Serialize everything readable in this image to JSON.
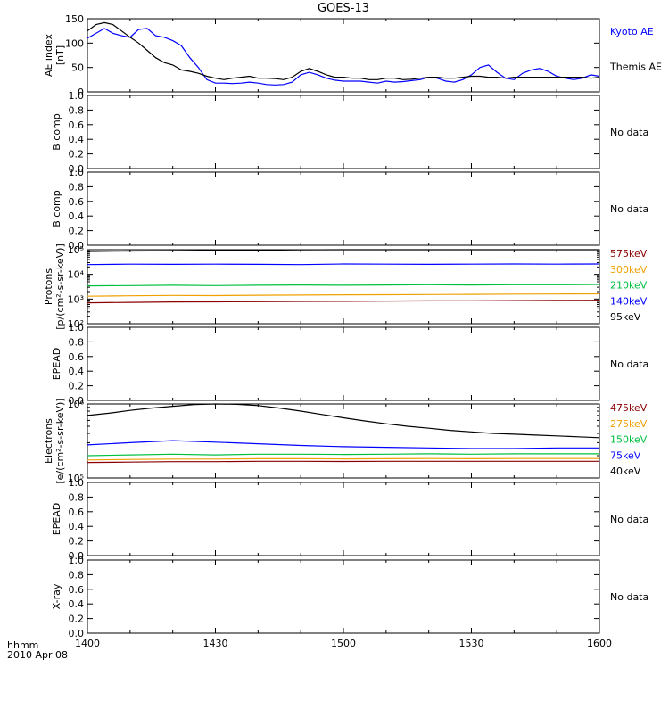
{
  "title": "GOES-13",
  "footer": {
    "time_label": "hhmm",
    "date_label": "2010 Apr 08"
  },
  "colors": {
    "axis": "#000000",
    "kyoto": "#0000ff",
    "black": "#000000",
    "dark_red": "#8b0000",
    "orange": "#f0a000",
    "green": "#00c040",
    "blue": "#0000ff"
  },
  "chart_data": [
    {
      "id": "ae",
      "type": "line",
      "ylabel": [
        "AE index",
        "[nT]"
      ],
      "xlim": [
        0,
        120
      ],
      "ylim": [
        0,
        150
      ],
      "ytick_values": [
        0,
        50,
        100,
        150
      ],
      "ytick_labels": [
        "0",
        "50",
        "100",
        "150"
      ],
      "legend": [
        {
          "name": "Kyoto AE",
          "color": "#0000ff"
        },
        {
          "name": "Themis AE",
          "color": "#000000"
        }
      ],
      "series": [
        {
          "name": "Kyoto AE",
          "color": "#0000ff",
          "x": [
            0,
            2,
            4,
            6,
            8,
            10,
            12,
            14,
            16,
            18,
            20,
            22,
            24,
            26,
            28,
            30,
            32,
            34,
            36,
            38,
            40,
            42,
            44,
            46,
            48,
            50,
            52,
            54,
            56,
            58,
            60,
            62,
            64,
            66,
            68,
            70,
            72,
            74,
            76,
            78,
            80,
            82,
            84,
            86,
            88,
            90,
            92,
            94,
            96,
            98,
            100,
            102,
            104,
            106,
            108,
            110,
            112,
            114,
            116,
            118,
            120
          ],
          "y": [
            110,
            120,
            130,
            120,
            115,
            112,
            128,
            130,
            115,
            112,
            105,
            95,
            70,
            50,
            25,
            18,
            18,
            17,
            18,
            20,
            18,
            15,
            14,
            15,
            20,
            35,
            40,
            35,
            28,
            24,
            22,
            22,
            22,
            20,
            18,
            22,
            20,
            21,
            23,
            25,
            30,
            28,
            22,
            20,
            25,
            35,
            50,
            55,
            40,
            28,
            25,
            38,
            45,
            48,
            42,
            32,
            28,
            25,
            28,
            35,
            32
          ]
        },
        {
          "name": "Themis AE",
          "color": "#000000",
          "x": [
            0,
            2,
            4,
            6,
            8,
            10,
            12,
            14,
            16,
            18,
            20,
            22,
            24,
            26,
            28,
            30,
            32,
            34,
            36,
            38,
            40,
            42,
            44,
            46,
            48,
            50,
            52,
            54,
            56,
            58,
            60,
            62,
            64,
            66,
            68,
            70,
            72,
            74,
            76,
            78,
            80,
            82,
            84,
            86,
            88,
            90,
            92,
            94,
            96,
            98,
            100,
            102,
            104,
            106,
            108,
            110,
            112,
            114,
            116,
            118,
            120
          ],
          "y": [
            125,
            138,
            142,
            138,
            125,
            112,
            100,
            85,
            70,
            60,
            55,
            45,
            42,
            38,
            32,
            28,
            25,
            28,
            30,
            32,
            28,
            28,
            27,
            25,
            30,
            42,
            48,
            42,
            35,
            30,
            30,
            28,
            28,
            25,
            25,
            28,
            28,
            25,
            26,
            28,
            30,
            30,
            28,
            28,
            30,
            32,
            32,
            30,
            30,
            28,
            30,
            30,
            30,
            30,
            30,
            30,
            30,
            30,
            30,
            28,
            30
          ]
        }
      ]
    },
    {
      "id": "bcomp1",
      "type": "line",
      "ylabel": [
        "B comp"
      ],
      "xlim": [
        0,
        120
      ],
      "ylim": [
        0,
        1
      ],
      "ytick_values": [
        0,
        0.2,
        0.4,
        0.6,
        0.8,
        1.0
      ],
      "ytick_labels": [
        "0.0",
        "0.2",
        "0.4",
        "0.6",
        "0.8",
        "1.0"
      ],
      "note": "No data",
      "series": []
    },
    {
      "id": "bcomp2",
      "type": "line",
      "ylabel": [
        "B comp"
      ],
      "xlim": [
        0,
        120
      ],
      "ylim": [
        0,
        1
      ],
      "ytick_values": [
        0,
        0.2,
        0.4,
        0.6,
        0.8,
        1.0
      ],
      "ytick_labels": [
        "0.0",
        "0.2",
        "0.4",
        "0.6",
        "0.8",
        "1.0"
      ],
      "note": "No data",
      "series": []
    },
    {
      "id": "protons",
      "type": "line",
      "log": true,
      "ylabel": [
        "Protons",
        "[p/(cm²-s-sr-keV)]"
      ],
      "xlim": [
        0,
        120
      ],
      "ylim": [
        100,
        100000
      ],
      "ytick_values": [
        100,
        1000,
        10000,
        100000
      ],
      "ytick_labels": [
        "10²",
        "10³",
        "10⁴",
        "10⁵"
      ],
      "legend": [
        {
          "name": "575keV",
          "color": "#8b0000"
        },
        {
          "name": "300keV",
          "color": "#f0a000"
        },
        {
          "name": "210keV",
          "color": "#00c040"
        },
        {
          "name": "140keV",
          "color": "#0000ff"
        },
        {
          "name": "95keV",
          "color": "#000000"
        }
      ],
      "series": [
        {
          "name": "95keV",
          "color": "#000000",
          "x": [
            0,
            10,
            20,
            30,
            40,
            50,
            60,
            70,
            80,
            90,
            100,
            110,
            120
          ],
          "y": [
            85000,
            88000,
            90000,
            92000,
            95000,
            98000,
            100000,
            100000,
            100000,
            100000,
            100000,
            100000,
            100000
          ]
        },
        {
          "name": "140keV",
          "color": "#0000ff",
          "x": [
            0,
            10,
            20,
            30,
            40,
            50,
            60,
            70,
            80,
            90,
            100,
            110,
            120
          ],
          "y": [
            25000,
            26000,
            25500,
            26000,
            25500,
            25000,
            26500,
            26000,
            25500,
            26000,
            26500,
            26000,
            26500
          ]
        },
        {
          "name": "210keV",
          "color": "#00c040",
          "x": [
            0,
            10,
            20,
            30,
            40,
            50,
            60,
            70,
            80,
            90,
            100,
            110,
            120
          ],
          "y": [
            3400,
            3500,
            3600,
            3500,
            3600,
            3700,
            3600,
            3700,
            3800,
            3700,
            3800,
            3800,
            3900
          ]
        },
        {
          "name": "300keV",
          "color": "#f0a000",
          "x": [
            0,
            10,
            20,
            30,
            40,
            50,
            60,
            70,
            80,
            90,
            100,
            110,
            120
          ],
          "y": [
            1300,
            1350,
            1400,
            1380,
            1420,
            1450,
            1480,
            1500,
            1520,
            1550,
            1580,
            1600,
            1620
          ]
        },
        {
          "name": "575keV",
          "color": "#8b0000",
          "x": [
            0,
            10,
            20,
            30,
            40,
            50,
            60,
            70,
            80,
            90,
            100,
            110,
            120
          ],
          "y": [
            700,
            730,
            760,
            770,
            780,
            800,
            810,
            830,
            840,
            850,
            860,
            880,
            890
          ]
        }
      ]
    },
    {
      "id": "epead1",
      "type": "line",
      "ylabel": [
        "EPEAD"
      ],
      "xlim": [
        0,
        120
      ],
      "ylim": [
        0,
        1
      ],
      "ytick_values": [
        0,
        0.2,
        0.4,
        0.6,
        0.8,
        1.0
      ],
      "ytick_labels": [
        "0.0",
        "0.2",
        "0.4",
        "0.6",
        "0.8",
        "1.0"
      ],
      "note": "No data",
      "series": []
    },
    {
      "id": "electrons",
      "type": "line",
      "log": true,
      "ylabel": [
        "Electrons",
        "[e/(cm²-s-sr-keV)]"
      ],
      "xlim": [
        0,
        120
      ],
      "ylim": [
        100000,
        1000000
      ],
      "ytick_values": [
        100000,
        1000000
      ],
      "ytick_labels": [
        "10⁵",
        "10⁶"
      ],
      "legend": [
        {
          "name": "475keV",
          "color": "#8b0000"
        },
        {
          "name": "275keV",
          "color": "#f0a000"
        },
        {
          "name": "150keV",
          "color": "#00c040"
        },
        {
          "name": "75keV",
          "color": "#0000ff"
        },
        {
          "name": "40keV",
          "color": "#000000"
        }
      ],
      "series": [
        {
          "name": "40keV",
          "color": "#000000",
          "x": [
            0,
            5,
            10,
            15,
            20,
            25,
            30,
            35,
            40,
            45,
            50,
            55,
            60,
            65,
            70,
            75,
            80,
            85,
            90,
            95,
            100,
            105,
            110,
            115,
            120
          ],
          "y": [
            700000,
            750000,
            820000,
            880000,
            930000,
            980000,
            1000000,
            990000,
            950000,
            880000,
            800000,
            720000,
            650000,
            590000,
            540000,
            500000,
            470000,
            440000,
            420000,
            400000,
            390000,
            380000,
            370000,
            360000,
            350000
          ]
        },
        {
          "name": "75keV",
          "color": "#0000ff",
          "x": [
            0,
            10,
            20,
            30,
            40,
            50,
            60,
            70,
            80,
            90,
            100,
            110,
            120
          ],
          "y": [
            280000,
            300000,
            320000,
            305000,
            290000,
            275000,
            265000,
            260000,
            255000,
            250000,
            250000,
            255000,
            255000
          ]
        },
        {
          "name": "150keV",
          "color": "#00c040",
          "x": [
            0,
            10,
            20,
            30,
            40,
            50,
            60,
            70,
            80,
            90,
            100,
            110,
            120
          ],
          "y": [
            200000,
            205000,
            210000,
            205000,
            210000,
            210000,
            208000,
            210000,
            212000,
            210000,
            212000,
            212000,
            212000
          ]
        },
        {
          "name": "275keV",
          "color": "#f0a000",
          "x": [
            0,
            10,
            20,
            30,
            40,
            50,
            60,
            70,
            80,
            90,
            100,
            110,
            120
          ],
          "y": [
            175000,
            178000,
            180000,
            180000,
            182000,
            182000,
            181000,
            182000,
            183000,
            182000,
            183000,
            183000,
            183000
          ]
        },
        {
          "name": "475keV",
          "color": "#8b0000",
          "x": [
            0,
            10,
            20,
            30,
            40,
            50,
            60,
            70,
            80,
            90,
            100,
            110,
            120
          ],
          "y": [
            162000,
            164000,
            166000,
            166000,
            168000,
            168000,
            167000,
            168000,
            168000,
            168000,
            168000,
            168000,
            168000
          ]
        }
      ]
    },
    {
      "id": "epead2",
      "type": "line",
      "ylabel": [
        "EPEAD"
      ],
      "xlim": [
        0,
        120
      ],
      "ylim": [
        0,
        1
      ],
      "ytick_values": [
        0,
        0.2,
        0.4,
        0.6,
        0.8,
        1.0
      ],
      "ytick_labels": [
        "0.0",
        "0.2",
        "0.4",
        "0.6",
        "0.8",
        "1.0"
      ],
      "note": "No data",
      "series": []
    },
    {
      "id": "xray",
      "type": "line",
      "ylabel": [
        "X-ray"
      ],
      "xlim": [
        0,
        120
      ],
      "ylim": [
        0,
        1
      ],
      "ytick_values": [
        0,
        0.2,
        0.4,
        0.6,
        0.8,
        1.0
      ],
      "ytick_labels": [
        "0.0",
        "0.2",
        "0.4",
        "0.6",
        "0.8",
        "1.0"
      ],
      "note": "No data",
      "xtick_values": [
        0,
        30,
        60,
        90,
        120
      ],
      "xtick_labels": [
        "1400",
        "1430",
        "1500",
        "1530",
        "1600"
      ],
      "series": []
    }
  ]
}
